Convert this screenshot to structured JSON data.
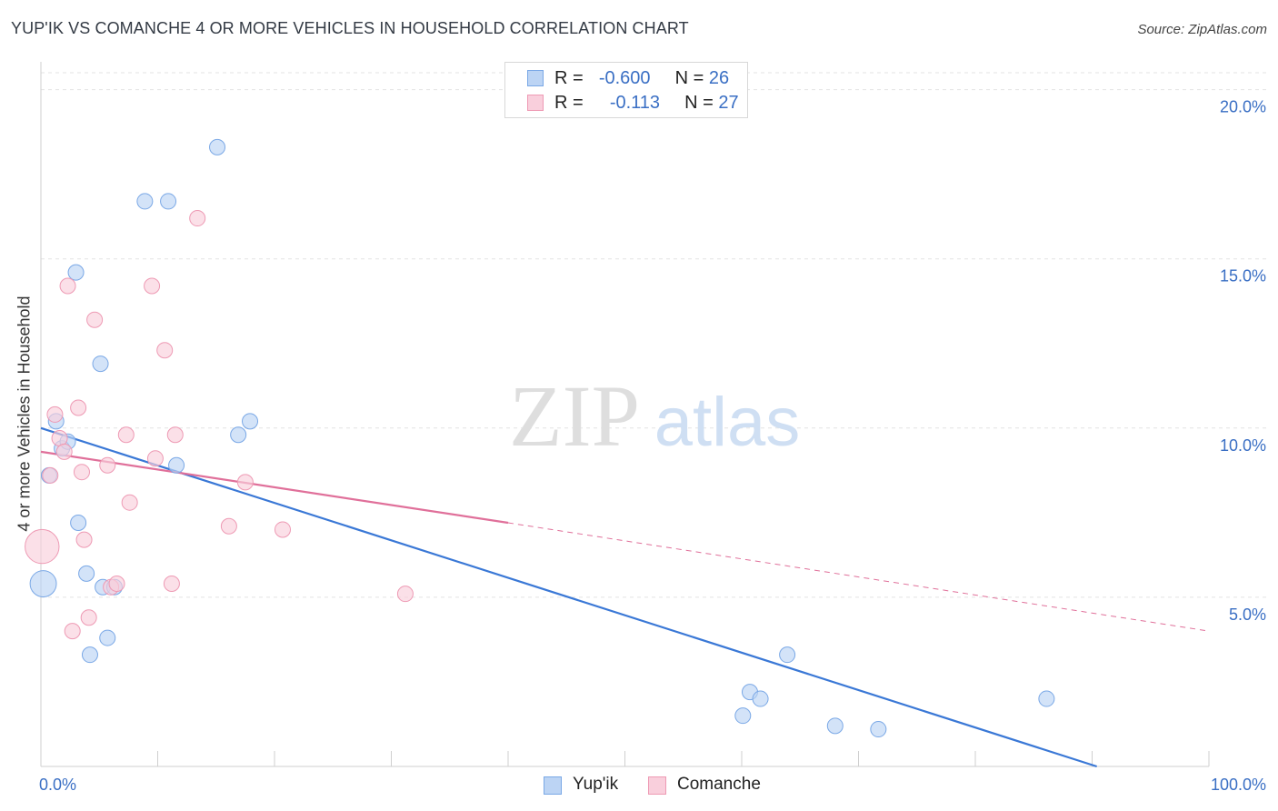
{
  "title": "YUP'IK VS COMANCHE 4 OR MORE VEHICLES IN HOUSEHOLD CORRELATION CHART",
  "source": "Source: ZipAtlas.com",
  "watermark": {
    "zip": "ZIP",
    "atlas": "atlas"
  },
  "legend": {
    "r_label": "R =",
    "n_label": "N =",
    "rows": [
      {
        "name": "Yup'ik",
        "r": "-0.600",
        "n": "26",
        "fill": "#bcd4f4",
        "stroke": "#7aa8e6"
      },
      {
        "name": "Comanche",
        "r": "-0.113",
        "n": "27",
        "fill": "#f9cfdc",
        "stroke": "#ee9ab4"
      }
    ]
  },
  "chart_data": {
    "type": "scatter",
    "title": "YUP'IK VS COMANCHE 4 OR MORE VEHICLES IN HOUSEHOLD CORRELATION CHART",
    "xlabel": "",
    "ylabel": "4 or more Vehicles in Household",
    "xlim": [
      0,
      100
    ],
    "ylim": [
      0,
      20.5
    ],
    "x_tick_labels": [
      "0.0%",
      "100.0%"
    ],
    "y_ticks": [
      5,
      10,
      15,
      20
    ],
    "y_tick_labels": [
      "5.0%",
      "10.0%",
      "15.0%",
      "20.0%"
    ],
    "grid": true,
    "series": [
      {
        "name": "Yup'ik",
        "color": "#3a78d6",
        "fill": "#bcd4f4",
        "stroke": "#7aa8e6",
        "points": [
          [
            0.2,
            5.4,
            1.7
          ],
          [
            0.7,
            8.6,
            1
          ],
          [
            1.3,
            10.2,
            1
          ],
          [
            1.8,
            9.4,
            1
          ],
          [
            2.3,
            9.6,
            1
          ],
          [
            3.0,
            14.6,
            1
          ],
          [
            3.2,
            7.2,
            1
          ],
          [
            3.9,
            5.7,
            1
          ],
          [
            4.2,
            3.3,
            1
          ],
          [
            5.1,
            11.9,
            1
          ],
          [
            5.7,
            3.8,
            1
          ],
          [
            5.3,
            5.3,
            1
          ],
          [
            6.3,
            5.3,
            1
          ],
          [
            8.9,
            16.7,
            1
          ],
          [
            10.9,
            16.7,
            1
          ],
          [
            11.6,
            8.9,
            1
          ],
          [
            15.1,
            18.3,
            1
          ],
          [
            16.9,
            9.8,
            1
          ],
          [
            17.9,
            10.2,
            1
          ],
          [
            60.1,
            1.5,
            1
          ],
          [
            60.7,
            2.2,
            1
          ],
          [
            61.6,
            2.0,
            1
          ],
          [
            63.9,
            3.3,
            1
          ],
          [
            68.0,
            1.2,
            1
          ],
          [
            71.7,
            1.1,
            1
          ],
          [
            86.1,
            2.0,
            1
          ]
        ],
        "trend": {
          "x": [
            0,
            90.4
          ],
          "y": [
            10.0,
            0
          ]
        }
      },
      {
        "name": "Comanche",
        "color": "#e0709a",
        "fill": "#f9cfdc",
        "stroke": "#ee9ab4",
        "points": [
          [
            0.1,
            6.5,
            2.2
          ],
          [
            0.8,
            8.6,
            1
          ],
          [
            1.2,
            10.4,
            1
          ],
          [
            1.6,
            9.7,
            1
          ],
          [
            2.0,
            9.3,
            1
          ],
          [
            2.3,
            14.2,
            1
          ],
          [
            2.7,
            4.0,
            1
          ],
          [
            3.2,
            10.6,
            1
          ],
          [
            3.5,
            8.7,
            1
          ],
          [
            3.7,
            6.7,
            1
          ],
          [
            4.1,
            4.4,
            1
          ],
          [
            4.6,
            13.2,
            1
          ],
          [
            5.7,
            8.9,
            1
          ],
          [
            6.0,
            5.3,
            1
          ],
          [
            6.5,
            5.4,
            1
          ],
          [
            7.3,
            9.8,
            1
          ],
          [
            7.6,
            7.8,
            1
          ],
          [
            9.5,
            14.2,
            1
          ],
          [
            9.8,
            9.1,
            1
          ],
          [
            10.6,
            12.3,
            1
          ],
          [
            11.2,
            5.4,
            1
          ],
          [
            11.5,
            9.8,
            1
          ],
          [
            13.4,
            16.2,
            1
          ],
          [
            16.1,
            7.1,
            1
          ],
          [
            17.5,
            8.4,
            1
          ],
          [
            20.7,
            7.0,
            1
          ],
          [
            31.2,
            5.1,
            1
          ]
        ],
        "trend": {
          "x": [
            0,
            40
          ],
          "y": [
            9.3,
            7.2
          ]
        },
        "trend_dashed": {
          "x": [
            40,
            100
          ],
          "y": [
            7.2,
            4.0
          ]
        }
      }
    ]
  }
}
